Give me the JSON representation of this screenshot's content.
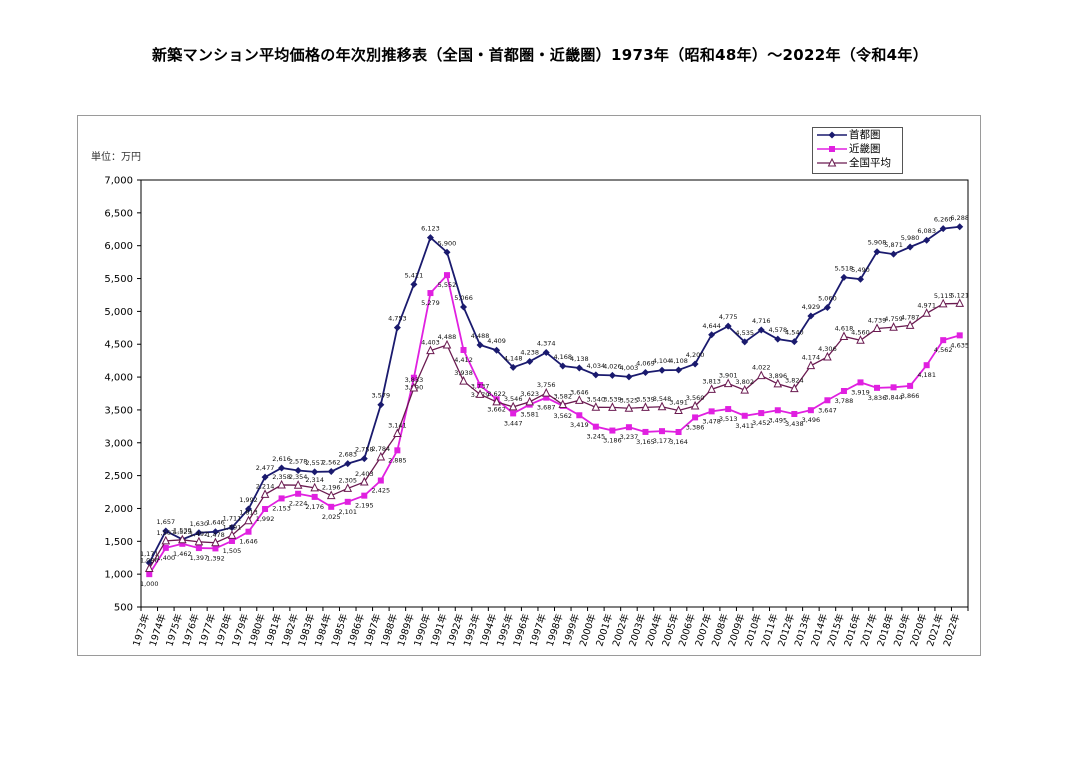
{
  "page_title": "新築マンション平均価格の年次別推移表（全国・首都圏・近畿圏）1973年（昭和48年）～2022年（令和4年）",
  "unit_label": "単位：万円",
  "chart_data": {
    "type": "line",
    "title": "新築マンション平均価格の年次別推移表（全国・首都圏・近畿圏）1973年（昭和48年）～2022年（令和4年）",
    "ylabel": "単位：万円",
    "xlabel": "",
    "ylim": [
      500,
      7000
    ],
    "yticks": [
      500,
      1000,
      1500,
      2000,
      2500,
      3000,
      3500,
      4000,
      4500,
      5000,
      5500,
      6000,
      6500,
      7000
    ],
    "ytick_labels": [
      "500",
      "1,000",
      "1,500",
      "2,000",
      "2,500",
      "3,000",
      "3,500",
      "4,000",
      "4,500",
      "5,000",
      "5,500",
      "6,000",
      "6,500",
      "7,000"
    ],
    "legend_position": "top-right",
    "grid": false,
    "categories": [
      "1973年",
      "1974年",
      "1975年",
      "1976年",
      "1977年",
      "1978年",
      "1979年",
      "1980年",
      "1981年",
      "1982年",
      "1983年",
      "1984年",
      "1985年",
      "1986年",
      "1987年",
      "1988年",
      "1989年",
      "1990年",
      "1991年",
      "1992年",
      "1993年",
      "1994年",
      "1995年",
      "1996年",
      "1997年",
      "1998年",
      "1999年",
      "2000年",
      "2001年",
      "2002年",
      "2003年",
      "2004年",
      "2005年",
      "2006年",
      "2007年",
      "2008年",
      "2009年",
      "2010年",
      "2011年",
      "2012年",
      "2013年",
      "2014年",
      "2015年",
      "2016年",
      "2017年",
      "2018年",
      "2019年",
      "2020年",
      "2021年",
      "2022年"
    ],
    "series": [
      {
        "name": "首都圏",
        "color": "#1a1a6e",
        "marker": "diamond",
        "values": [
          1171,
          1657,
          1530,
          1630,
          1646,
          1711,
          1992,
          2477,
          2616,
          2578,
          2557,
          2562,
          2683,
          2758,
          3579,
          4753,
          5411,
          6123,
          5900,
          5066,
          4488,
          4409,
          4148,
          4238,
          4374,
          4168,
          4138,
          4034,
          4026,
          4003,
          4069,
          4104,
          4108,
          4200,
          4644,
          4775,
          4535,
          4716,
          4578,
          4540,
          4929,
          5060,
          5518,
          5490,
          5908,
          5871,
          5980,
          6083,
          6260,
          6288
        ]
      },
      {
        "name": "近畿圏",
        "color": "#e020e0",
        "marker": "square",
        "values": [
          1000,
          1400,
          1462,
          1397,
          1392,
          1505,
          1646,
          1992,
          2153,
          2224,
          2176,
          2025,
          2101,
          2195,
          2425,
          2885,
          3990,
          5279,
          5552,
          4412,
          3879,
          3662,
          3447,
          3581,
          3687,
          3562,
          3419,
          3245,
          3186,
          3237,
          3165,
          3177,
          3164,
          3386,
          3478,
          3513,
          3411,
          3452,
          3495,
          3438,
          3496,
          3647,
          3788,
          3919,
          3836,
          3844,
          3866,
          4181,
          4562,
          4635
        ]
      },
      {
        "name": "全国平均",
        "color": "#6a1a50",
        "marker": "triangle",
        "values": [
          1086,
          1507,
          1523,
          1492,
          1478,
          1591,
          1813,
          2214,
          2358,
          2354,
          2314,
          2196,
          2305,
          2403,
          2784,
          3141,
          3833,
          4403,
          4488,
          3938,
          3737,
          3622,
          3546,
          3623,
          3756,
          3582,
          3646,
          3540,
          3539,
          3525,
          3539,
          3548,
          3491,
          3560,
          3813,
          3901,
          3802,
          4022,
          3896,
          3824,
          4174,
          4306,
          4618,
          4560,
          4739,
          4759,
          4787,
          4971,
          5115,
          5121
        ]
      }
    ]
  }
}
